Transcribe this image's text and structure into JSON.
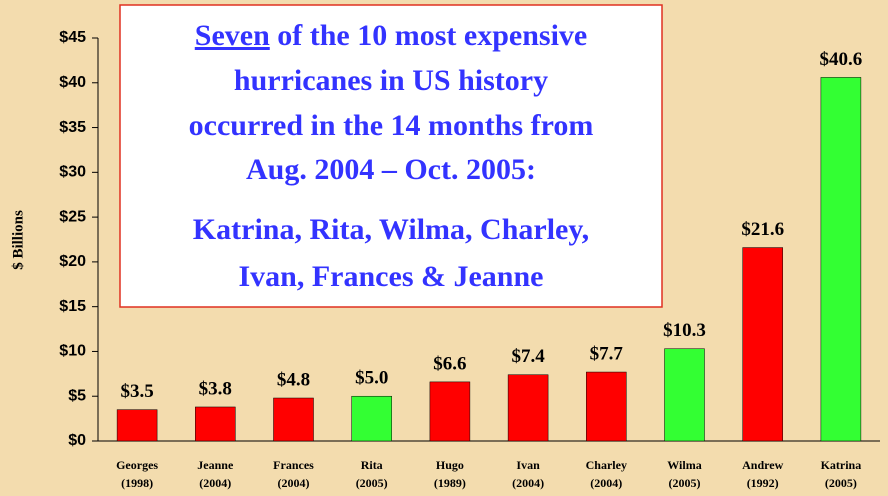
{
  "chart_data": {
    "type": "bar",
    "y_label": "$ Billions",
    "categories": [
      [
        "Georges",
        "(1998)"
      ],
      [
        "Jeanne",
        "(2004)"
      ],
      [
        "Frances",
        "(2004)"
      ],
      [
        "Rita",
        "(2005)"
      ],
      [
        "Hugo",
        "(1989)"
      ],
      [
        "Ivan",
        "(2004)"
      ],
      [
        "Charley",
        "(2004)"
      ],
      [
        "Wilma",
        "(2005)"
      ],
      [
        "Andrew",
        "(1992)"
      ],
      [
        "Katrina",
        "(2005)"
      ]
    ],
    "values": [
      3.5,
      3.8,
      4.8,
      5.0,
      6.6,
      7.4,
      7.7,
      10.3,
      21.6,
      40.6
    ],
    "value_labels": [
      "$3.5",
      "$3.8",
      "$4.8",
      "$5.0",
      "$6.6",
      "$7.4",
      "$7.7",
      "$10.3",
      "$21.6",
      "$40.6"
    ],
    "colors": [
      "#ff0000",
      "#ff0000",
      "#ff0000",
      "#33ff33",
      "#ff0000",
      "#ff0000",
      "#ff0000",
      "#33ff33",
      "#ff0000",
      "#33ff33"
    ],
    "ylim": [
      0,
      45
    ],
    "yticks": [
      {
        "value": 0,
        "label": "$0"
      },
      {
        "value": 5,
        "label": "$5"
      },
      {
        "value": 10,
        "label": "$10"
      },
      {
        "value": 15,
        "label": "$15"
      },
      {
        "value": 20,
        "label": "$20"
      },
      {
        "value": 25,
        "label": "$25"
      },
      {
        "value": 30,
        "label": "$30"
      },
      {
        "value": 35,
        "label": "$35"
      },
      {
        "value": 40,
        "label": "$40"
      },
      {
        "value": 45,
        "label": "$45"
      }
    ],
    "grid": false,
    "annotation": [
      [
        "Seven",
        " of the 10 most expensive"
      ],
      [
        "hurricanes in US history"
      ],
      [
        "occurred in the 14 months from"
      ],
      [
        "Aug. 2004 – Oct. 2005:"
      ],
      [
        "Katrina, Rita, Wilma, Charley,"
      ],
      [
        "Ivan, Frances & Jeanne"
      ]
    ]
  }
}
